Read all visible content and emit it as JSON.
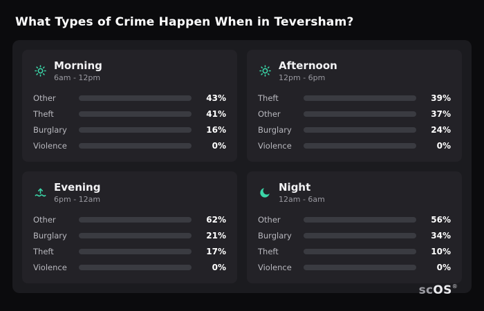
{
  "page": {
    "title": "What Types of Crime Happen When in Teversham?",
    "brand_prefix": "sc",
    "brand_suffix": "OS",
    "brand_reg": "®"
  },
  "colors": {
    "accent_teal": "#3bd6a8",
    "bar_other": "#8593ad",
    "bar_theft": "#a15cf0",
    "bar_burglary": "#e5862b",
    "bar_track": "#3a3b41",
    "panel_bg": "#1b1b1f",
    "card_bg": "#232227",
    "page_bg": "#0b0b0d"
  },
  "chart_data": [
    {
      "type": "bar",
      "title": "Morning",
      "subtitle": "6am - 12pm",
      "icon": "sun-icon",
      "xlim": [
        0,
        100
      ],
      "rows": [
        {
          "label": "Other",
          "value": 43,
          "pct": "43%",
          "color": "#8593ad"
        },
        {
          "label": "Theft",
          "value": 41,
          "pct": "41%",
          "color": "#a15cf0"
        },
        {
          "label": "Burglary",
          "value": 16,
          "pct": "16%",
          "color": "#e5862b"
        },
        {
          "label": "Violence",
          "value": 0,
          "pct": "0%",
          "color": "#3a3b41"
        }
      ]
    },
    {
      "type": "bar",
      "title": "Afternoon",
      "subtitle": "12pm - 6pm",
      "icon": "sun-icon",
      "xlim": [
        0,
        100
      ],
      "rows": [
        {
          "label": "Theft",
          "value": 39,
          "pct": "39%",
          "color": "#a15cf0"
        },
        {
          "label": "Other",
          "value": 37,
          "pct": "37%",
          "color": "#8593ad"
        },
        {
          "label": "Burglary",
          "value": 24,
          "pct": "24%",
          "color": "#e5862b"
        },
        {
          "label": "Violence",
          "value": 0,
          "pct": "0%",
          "color": "#3a3b41"
        }
      ]
    },
    {
      "type": "bar",
      "title": "Evening",
      "subtitle": "6pm - 12am",
      "icon": "sunset-icon",
      "xlim": [
        0,
        100
      ],
      "rows": [
        {
          "label": "Other",
          "value": 62,
          "pct": "62%",
          "color": "#8593ad"
        },
        {
          "label": "Burglary",
          "value": 21,
          "pct": "21%",
          "color": "#e5862b"
        },
        {
          "label": "Theft",
          "value": 17,
          "pct": "17%",
          "color": "#a15cf0"
        },
        {
          "label": "Violence",
          "value": 0,
          "pct": "0%",
          "color": "#3a3b41"
        }
      ]
    },
    {
      "type": "bar",
      "title": "Night",
      "subtitle": "12am - 6am",
      "icon": "moon-icon",
      "xlim": [
        0,
        100
      ],
      "rows": [
        {
          "label": "Other",
          "value": 56,
          "pct": "56%",
          "color": "#8593ad"
        },
        {
          "label": "Burglary",
          "value": 34,
          "pct": "34%",
          "color": "#e5862b"
        },
        {
          "label": "Theft",
          "value": 10,
          "pct": "10%",
          "color": "#a15cf0"
        },
        {
          "label": "Violence",
          "value": 0,
          "pct": "0%",
          "color": "#3a3b41"
        }
      ]
    }
  ]
}
